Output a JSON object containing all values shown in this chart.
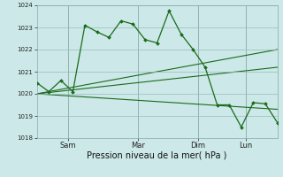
{
  "xlabel": "Pression niveau de la mer( hPa )",
  "bg_color": "#cce8e8",
  "line_color": "#1a6b1a",
  "grid_color": "#99bbbb",
  "vline_color": "#88aaaa",
  "ylim": [
    1018,
    1024
  ],
  "yticks": [
    1018,
    1019,
    1020,
    1021,
    1022,
    1023,
    1024
  ],
  "xlim": [
    0,
    20
  ],
  "day_ticks": [
    2.6,
    8.4,
    13.4,
    17.4
  ],
  "day_labels": [
    "Sam",
    "Mar",
    "Dim",
    "Lun"
  ],
  "main_series_x": [
    0,
    1,
    2,
    3,
    4,
    5,
    6,
    7,
    8,
    9,
    10,
    11,
    12,
    13,
    14,
    15,
    16,
    17,
    18,
    19,
    20
  ],
  "main_series_y": [
    1020.5,
    1020.1,
    1020.6,
    1020.1,
    1023.1,
    1022.8,
    1022.55,
    1023.3,
    1023.15,
    1022.45,
    1022.3,
    1023.75,
    1022.7,
    1022.0,
    1021.2,
    1019.5,
    1019.5,
    1018.5,
    1019.6,
    1019.55,
    1018.7
  ],
  "straight_lines": [
    {
      "x": [
        0,
        20
      ],
      "y": [
        1020.0,
        1022.0
      ]
    },
    {
      "x": [
        0,
        20
      ],
      "y": [
        1020.0,
        1021.2
      ]
    },
    {
      "x": [
        0,
        20
      ],
      "y": [
        1020.0,
        1019.3
      ]
    }
  ],
  "xlabel_fontsize": 7,
  "ytick_fontsize": 5,
  "xtick_fontsize": 6,
  "marker": "D",
  "markersize": 2.0,
  "linewidth": 0.9
}
